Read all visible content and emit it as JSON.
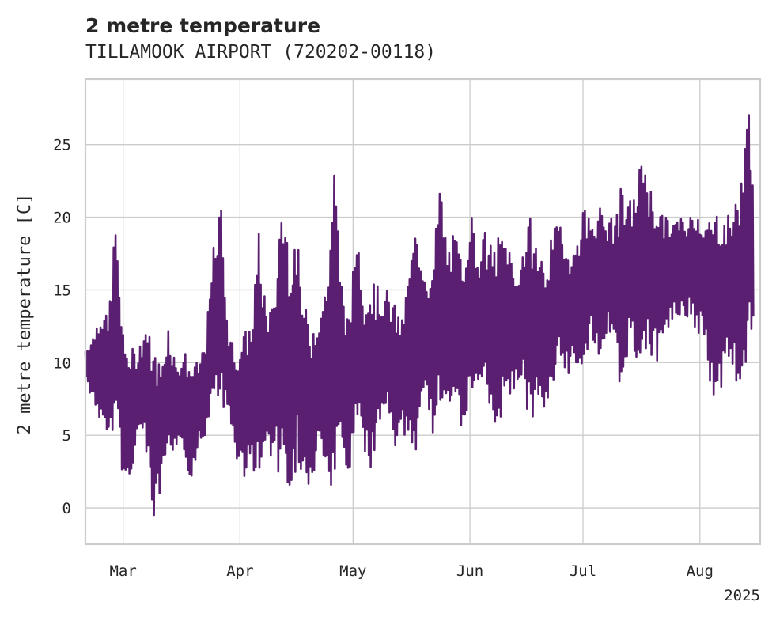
{
  "chart_data": {
    "type": "line",
    "title": "2 metre temperature",
    "subtitle": "TILLAMOOK AIRPORT (720202-00118)",
    "xlabel": "",
    "ylabel": "2 metre temperature [C]",
    "x_range": [
      "2025-02-19",
      "2025-08-17"
    ],
    "ylim": [
      -2.5,
      29.5
    ],
    "y_ticks": [
      0,
      5,
      10,
      15,
      20,
      25
    ],
    "y_tick_labels": [
      "0",
      "5",
      "10",
      "15",
      "20",
      "25"
    ],
    "x_ticks": [
      "2025-03-01",
      "2025-04-01",
      "2025-05-01",
      "2025-06-01",
      "2025-07-01",
      "2025-08-01"
    ],
    "x_tick_labels": [
      "Mar",
      "Apr",
      "May",
      "Jun",
      "Jul",
      "Aug"
    ],
    "x_year_label": "2025",
    "grid": true,
    "series": [
      {
        "color": "#5a1f71",
        "x": [
          "2025-02-19",
          "2025-02-21",
          "2025-02-23",
          "2025-02-25",
          "2025-02-27",
          "2025-03-01",
          "2025-03-03",
          "2025-03-05",
          "2025-03-07",
          "2025-03-09",
          "2025-03-11",
          "2025-03-13",
          "2025-03-15",
          "2025-03-17",
          "2025-03-19",
          "2025-03-21",
          "2025-03-23",
          "2025-03-25",
          "2025-03-27",
          "2025-03-29",
          "2025-03-31",
          "2025-04-02",
          "2025-04-04",
          "2025-04-06",
          "2025-04-08",
          "2025-04-10",
          "2025-04-12",
          "2025-04-14",
          "2025-04-16",
          "2025-04-18",
          "2025-04-20",
          "2025-04-22",
          "2025-04-24",
          "2025-04-26",
          "2025-04-28",
          "2025-04-30",
          "2025-05-02",
          "2025-05-04",
          "2025-05-06",
          "2025-05-08",
          "2025-05-10",
          "2025-05-12",
          "2025-05-14",
          "2025-05-16",
          "2025-05-18",
          "2025-05-20",
          "2025-05-22",
          "2025-05-24",
          "2025-05-26",
          "2025-05-28",
          "2025-05-30",
          "2025-06-01",
          "2025-06-03",
          "2025-06-05",
          "2025-06-07",
          "2025-06-09",
          "2025-06-11",
          "2025-06-13",
          "2025-06-15",
          "2025-06-17",
          "2025-06-19",
          "2025-06-21",
          "2025-06-23",
          "2025-06-25",
          "2025-06-27",
          "2025-06-29",
          "2025-07-01",
          "2025-07-03",
          "2025-07-05",
          "2025-07-07",
          "2025-07-09",
          "2025-07-11",
          "2025-07-13",
          "2025-07-15",
          "2025-07-17",
          "2025-07-19",
          "2025-07-21",
          "2025-07-23",
          "2025-07-25",
          "2025-07-27",
          "2025-07-29",
          "2025-07-31",
          "2025-08-02",
          "2025-08-04",
          "2025-08-06",
          "2025-08-08",
          "2025-08-10",
          "2025-08-12",
          "2025-08-14",
          "2025-08-16"
        ],
        "max": [
          11,
          12,
          14,
          13,
          20,
          12,
          11,
          11,
          13,
          11,
          10,
          13,
          10,
          11,
          10,
          10,
          12,
          18,
          21,
          12,
          11,
          12,
          13,
          19,
          14,
          14,
          22,
          19,
          19,
          14,
          13,
          14,
          16,
          24,
          16,
          13,
          20,
          15,
          16,
          15,
          15,
          14,
          13,
          17,
          20,
          17,
          16,
          23,
          18,
          19,
          17,
          21,
          18,
          19,
          18,
          19,
          19,
          16,
          18,
          20,
          18,
          17,
          19,
          20,
          18,
          18,
          21,
          20,
          21,
          20,
          20,
          22,
          21,
          22,
          25,
          22,
          21,
          20,
          20,
          20,
          20,
          21,
          20,
          20,
          21,
          20,
          21,
          23,
          28,
          22
        ],
        "min": [
          9,
          7,
          6,
          4,
          6,
          1,
          2,
          5,
          4,
          -1,
          1,
          3,
          4,
          3,
          2,
          4,
          5,
          7,
          7,
          6,
          3,
          2,
          3,
          1,
          4,
          3,
          2,
          -1,
          3,
          2,
          0,
          4,
          1,
          1,
          3,
          2,
          6,
          4,
          2,
          5,
          7,
          4,
          5,
          4,
          4,
          7,
          5,
          6,
          8,
          6,
          5,
          7,
          7,
          8,
          5,
          6,
          7,
          8,
          9,
          5,
          7,
          6,
          8,
          10,
          9,
          10,
          9,
          12,
          10,
          12,
          11,
          7,
          11,
          10,
          11,
          10,
          10,
          12,
          13,
          13,
          13,
          12,
          12,
          8,
          7,
          10,
          9,
          8,
          11,
          13
        ]
      }
    ]
  }
}
